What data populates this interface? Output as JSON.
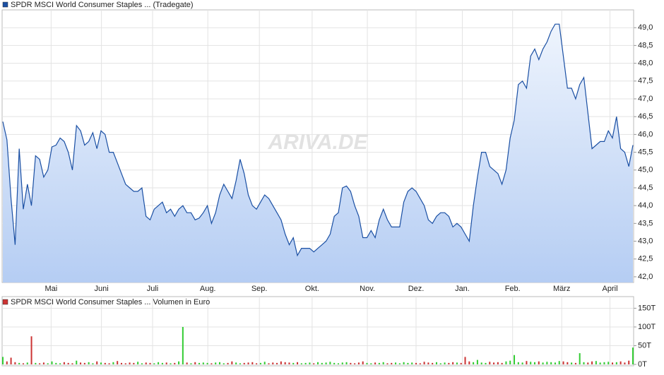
{
  "chart_data": [
    {
      "type": "area",
      "watermark": "ARIVA.DE",
      "series": [
        {
          "name": "SPDR MSCI World Consumer Staples ... (Tradegate)",
          "color": "#1a4fa3",
          "values": [
            46.36,
            45.85,
            44.2,
            42.9,
            45.6,
            43.9,
            44.6,
            44.0,
            45.4,
            45.3,
            44.8,
            45.0,
            45.65,
            45.7,
            45.9,
            45.8,
            45.5,
            45.0,
            46.25,
            46.1,
            45.7,
            45.8,
            46.05,
            45.6,
            46.1,
            46.0,
            45.5,
            45.5,
            45.2,
            44.9,
            44.6,
            44.5,
            44.4,
            44.4,
            44.5,
            43.7,
            43.6,
            43.9,
            44.0,
            44.1,
            43.8,
            43.9,
            43.7,
            43.9,
            44.0,
            43.8,
            43.8,
            43.6,
            43.65,
            43.8,
            44.0,
            43.5,
            43.8,
            44.3,
            44.6,
            44.4,
            44.2,
            44.7,
            45.3,
            44.9,
            44.3,
            44.0,
            43.9,
            44.1,
            44.3,
            44.2,
            44.0,
            43.8,
            43.6,
            43.2,
            42.9,
            43.1,
            42.6,
            42.8,
            42.8,
            42.8,
            42.7,
            42.8,
            42.9,
            43.0,
            43.2,
            43.7,
            43.8,
            44.5,
            44.55,
            44.4,
            44.0,
            43.7,
            43.1,
            43.1,
            43.3,
            43.1,
            43.6,
            43.9,
            43.6,
            43.4,
            43.4,
            43.4,
            44.1,
            44.4,
            44.5,
            44.4,
            44.2,
            44.0,
            43.6,
            43.5,
            43.7,
            43.8,
            43.8,
            43.7,
            43.4,
            43.5,
            43.4,
            43.2,
            43.0,
            44.0,
            44.8,
            45.5,
            45.5,
            45.1,
            45.0,
            44.9,
            44.6,
            45.0,
            45.9,
            46.4,
            47.4,
            47.5,
            47.3,
            48.2,
            48.4,
            48.1,
            48.4,
            48.6,
            48.9,
            49.1,
            49.1,
            48.2,
            47.3,
            47.3,
            47.0,
            47.4,
            47.6,
            46.6,
            45.6,
            45.7,
            45.8,
            45.8,
            46.1,
            45.9,
            46.5,
            45.6,
            45.5,
            45.1,
            45.7
          ]
        }
      ],
      "xlim": [
        0,
        154
      ],
      "xticks": [
        {
          "value": 11.8,
          "label": "Mai"
        },
        {
          "value": 24.1,
          "label": "Juni"
        },
        {
          "value": 36.6,
          "label": "Juli"
        },
        {
          "value": 50.1,
          "label": "Aug."
        },
        {
          "value": 62.7,
          "label": "Sep."
        },
        {
          "value": 75.6,
          "label": "Okt."
        },
        {
          "value": 89.1,
          "label": "Nov."
        },
        {
          "value": 101,
          "label": "Dez."
        },
        {
          "value": 112.3,
          "label": "Jan."
        },
        {
          "value": 124.6,
          "label": "Feb."
        },
        {
          "value": 136.6,
          "label": "März"
        },
        {
          "value": 148.4,
          "label": "April"
        }
      ],
      "ylim": [
        41.84,
        49.5
      ],
      "yticks": [
        {
          "value": 42,
          "label": "42,0"
        },
        {
          "value": 42.5,
          "label": "42,5"
        },
        {
          "value": 43,
          "label": "43,0"
        },
        {
          "value": 43.5,
          "label": "43,5"
        },
        {
          "value": 44,
          "label": "44,0"
        },
        {
          "value": 44.5,
          "label": "44,5"
        },
        {
          "value": 45,
          "label": "45,0"
        },
        {
          "value": 45.5,
          "label": "45,5"
        },
        {
          "value": 46,
          "label": "46,0"
        },
        {
          "value": 46.5,
          "label": "46,5"
        },
        {
          "value": 47,
          "label": "47,0"
        },
        {
          "value": 47.5,
          "label": "47,5"
        },
        {
          "value": 48,
          "label": "48,0"
        },
        {
          "value": 48.5,
          "label": "48,5"
        },
        {
          "value": 49,
          "label": "49,0"
        }
      ],
      "grid": true
    },
    {
      "type": "bar",
      "series": [
        {
          "name": "SPDR MSCI World Consumer Staples ... Volumen in Euro",
          "color": "#cc3333",
          "up_color": "#33cc33",
          "down_color": "#cc3333",
          "values": [
            20,
            8,
            18,
            6,
            4,
            3,
            5,
            75,
            4,
            3,
            5,
            3,
            8,
            4,
            3,
            6,
            4,
            3,
            10,
            5,
            4,
            6,
            3,
            8,
            5,
            4,
            3,
            6,
            9,
            4,
            3,
            5,
            4,
            7,
            3,
            5,
            4,
            3,
            6,
            4,
            5,
            3,
            4,
            8,
            100,
            5,
            3,
            6,
            4,
            5,
            4,
            3,
            5,
            6,
            3,
            4,
            8,
            5,
            3,
            4,
            5,
            6,
            3,
            4,
            7,
            3,
            5,
            4,
            8,
            6,
            5,
            4,
            6,
            3,
            4,
            5,
            3,
            6,
            4,
            5,
            7,
            4,
            3,
            5,
            6,
            4,
            3,
            5,
            8,
            4,
            3,
            5,
            4,
            6,
            3,
            4,
            5,
            3,
            6,
            4,
            5,
            4,
            3,
            7,
            5,
            4,
            6,
            3,
            5,
            4,
            6,
            5,
            4,
            20,
            8,
            6,
            12,
            5,
            4,
            7,
            5,
            6,
            4,
            8,
            10,
            25,
            6,
            5,
            9,
            7,
            6,
            8,
            5,
            7,
            6,
            5,
            9,
            8,
            6,
            5,
            4,
            30,
            6,
            5,
            8,
            9,
            5,
            6,
            7,
            5,
            6,
            8,
            5,
            10,
            45
          ]
        }
      ],
      "xlim": [
        0,
        154
      ],
      "ylim": [
        0,
        165
      ],
      "yticks": [
        {
          "value": 0,
          "label": "0T"
        },
        {
          "value": 50,
          "label": "50T"
        },
        {
          "value": 100,
          "label": "100T"
        },
        {
          "value": 150,
          "label": "150T"
        }
      ],
      "grid": true
    }
  ]
}
